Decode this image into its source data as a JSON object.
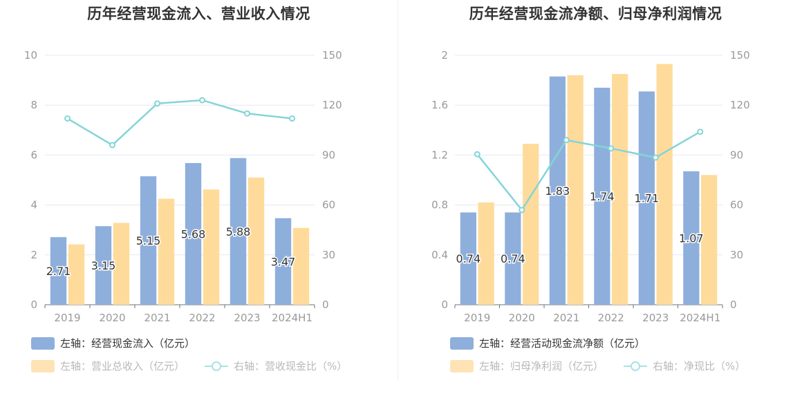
{
  "colors": {
    "bar_blue": "#8eafdc",
    "bar_orange": "#ffdb9b",
    "line_teal": "#84d4d8",
    "axis_text": "#999999"
  },
  "left_chart": {
    "title": "历年经营现金流入、营业收入情况",
    "legend": [
      {
        "label": "左轴：经营现金流入（亿元）",
        "kind": "bar",
        "color": "#8eafdc",
        "faded": false
      },
      {
        "label": "左轴：营业总收入（亿元）",
        "kind": "bar",
        "color": "#ffe3b5",
        "faded": true
      },
      {
        "label": "右轴：营收现金比（%）",
        "kind": "line",
        "color": "#84d4d8",
        "faded": true
      }
    ]
  },
  "right_chart": {
    "title": "历年经营现金流净额、归母净利润情况",
    "legend": [
      {
        "label": "左轴：经营活动现金流净额（亿元）",
        "kind": "bar",
        "color": "#8eafdc",
        "faded": false
      },
      {
        "label": "左轴：归母净利润（亿元）",
        "kind": "bar",
        "color": "#ffe3b5",
        "faded": true
      },
      {
        "label": "右轴：净现比（%）",
        "kind": "line",
        "color": "#84d4d8",
        "faded": true
      }
    ]
  },
  "chart_data": [
    {
      "type": "bar",
      "title": "历年经营现金流入、营业收入情况",
      "categories": [
        "2019",
        "2020",
        "2021",
        "2022",
        "2023",
        "2024H1"
      ],
      "ylim_left": [
        0,
        10
      ],
      "yticks_left": [
        "0",
        "2",
        "4",
        "6",
        "8",
        "10"
      ],
      "ylim_right": [
        0,
        150
      ],
      "yticks_right": [
        "0",
        "30",
        "60",
        "90",
        "120",
        "150"
      ],
      "grid": true,
      "legend_position": "bottom-left",
      "series": [
        {
          "name": "左轴：经营现金流入（亿元）",
          "type": "bar",
          "axis": "left",
          "color": "#8eafdc",
          "values": [
            2.71,
            3.15,
            5.15,
            5.68,
            5.88,
            3.47
          ],
          "labels": [
            "2.71",
            "3.15",
            "5.15",
            "5.68",
            "5.88",
            "3.47"
          ]
        },
        {
          "name": "左轴：营业总收入（亿元）",
          "type": "bar",
          "axis": "left",
          "color": "#ffdb9b",
          "values": [
            2.42,
            3.28,
            4.25,
            4.62,
            5.1,
            3.08
          ]
        },
        {
          "name": "右轴：营收现金比（%）",
          "type": "line",
          "axis": "right",
          "color": "#84d4d8",
          "values": [
            112,
            96,
            121,
            123,
            115,
            112
          ]
        }
      ]
    },
    {
      "type": "bar",
      "title": "历年经营现金流净额、归母净利润情况",
      "categories": [
        "2019",
        "2020",
        "2021",
        "2022",
        "2023",
        "2024H1"
      ],
      "ylim_left": [
        0,
        2
      ],
      "yticks_left": [
        "0",
        "0.4",
        "0.8",
        "1.2",
        "1.6",
        "2"
      ],
      "ylim_right": [
        0,
        150
      ],
      "yticks_right": [
        "0",
        "30",
        "60",
        "90",
        "120",
        "150"
      ],
      "grid": true,
      "legend_position": "bottom-left",
      "series": [
        {
          "name": "左轴：经营活动现金流净额（亿元）",
          "type": "bar",
          "axis": "left",
          "color": "#8eafdc",
          "values": [
            0.74,
            0.74,
            1.83,
            1.74,
            1.71,
            1.07
          ],
          "labels": [
            "0.74",
            "0.74",
            "1.83",
            "1.74",
            "1.71",
            "1.07"
          ]
        },
        {
          "name": "左轴：归母净利润（亿元）",
          "type": "bar",
          "axis": "left",
          "color": "#ffdb9b",
          "values": [
            0.82,
            1.29,
            1.84,
            1.85,
            1.93,
            1.04
          ]
        },
        {
          "name": "右轴：净现比（%）",
          "type": "line",
          "axis": "right",
          "color": "#84d4d8",
          "values": [
            90.5,
            57,
            99,
            94,
            88.5,
            104
          ]
        }
      ]
    }
  ]
}
